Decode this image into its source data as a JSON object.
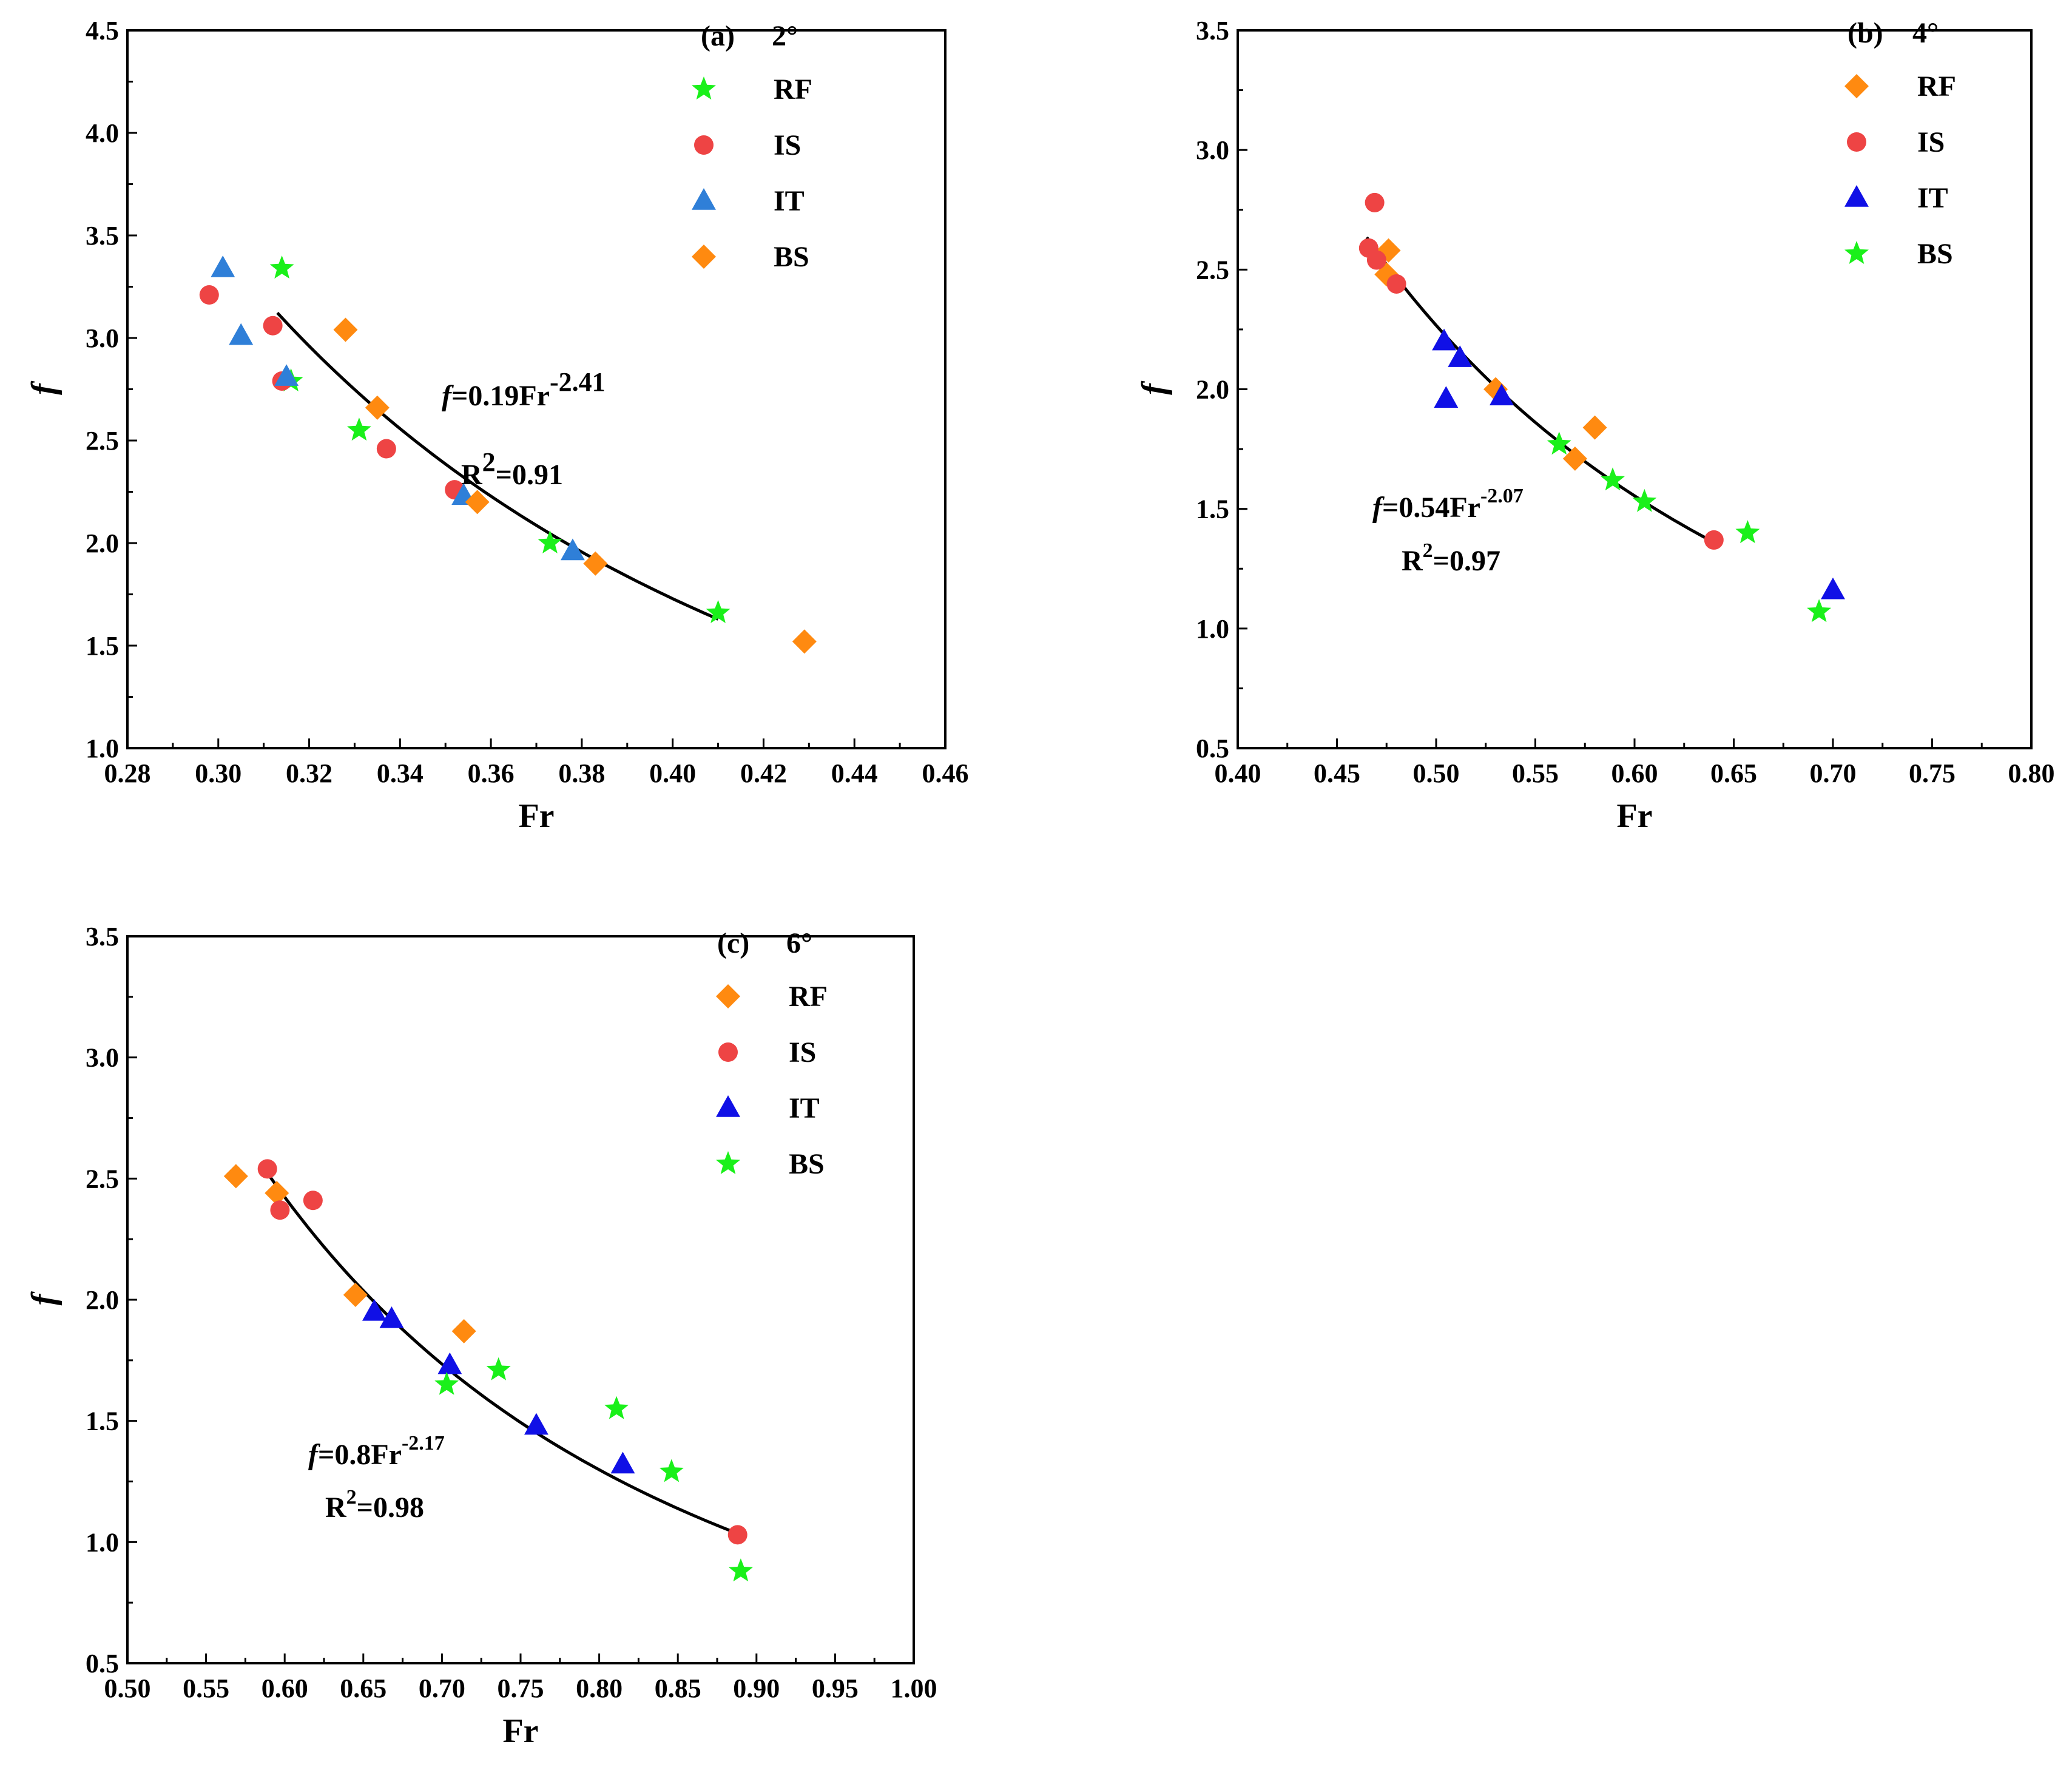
{
  "figure_title": "",
  "colors": {
    "RF_a": "#1AF01A",
    "IS": "#EE4444",
    "IT_a": "#2F7FD8",
    "IT": "#1010E6",
    "BS_a": "#FF8A10",
    "orange": "#FF8A10",
    "green": "#1AF01A",
    "axis": "#000000",
    "fit": "#000000"
  },
  "chart_data": [
    {
      "id": "a",
      "type": "scatter",
      "panel_label": "(a)",
      "angle": "2°",
      "xlabel": "Fr",
      "ylabel": "f",
      "xlim": [
        0.28,
        0.46
      ],
      "ylim": [
        1.0,
        4.5
      ],
      "xticks": [
        "0.28",
        "0.30",
        "0.32",
        "0.34",
        "0.36",
        "0.38",
        "0.40",
        "0.42",
        "0.44",
        "0.46"
      ],
      "yticks": [
        "1.0",
        "1.5",
        "2.0",
        "2.5",
        "3.0",
        "3.5",
        "4.0",
        "4.5"
      ],
      "fit": {
        "a": 0.19,
        "b": -2.41,
        "x_range": [
          0.313,
          0.41
        ]
      },
      "equation": {
        "prefix": "f",
        "body": "=0.19Fr",
        "exp": "-2.41"
      },
      "r2": {
        "prefix": "R",
        "exp": "2",
        "value": "=0.91"
      },
      "series": [
        {
          "name": "RF",
          "marker": "star",
          "color": "#1AF01A",
          "x": [
            0.314,
            0.316,
            0.331,
            0.373,
            0.41
          ],
          "y": [
            3.34,
            2.79,
            2.55,
            2.0,
            1.66
          ]
        },
        {
          "name": "IS",
          "marker": "circle",
          "color": "#EE4444",
          "x": [
            0.298,
            0.312,
            0.314,
            0.337,
            0.352
          ],
          "y": [
            3.21,
            3.06,
            2.79,
            2.46,
            2.26
          ]
        },
        {
          "name": "IT",
          "marker": "triangle",
          "color": "#2F7FD8",
          "x": [
            0.301,
            0.305,
            0.315,
            0.354,
            0.378
          ],
          "y": [
            3.34,
            3.01,
            2.81,
            2.23,
            1.96
          ]
        },
        {
          "name": "BS",
          "marker": "diamond",
          "color": "#FF8A10",
          "x": [
            0.328,
            0.335,
            0.357,
            0.383,
            0.429
          ],
          "y": [
            3.04,
            2.66,
            2.2,
            1.9,
            1.52
          ]
        }
      ]
    },
    {
      "id": "b",
      "type": "scatter",
      "panel_label": "(b)",
      "angle": "4°",
      "xlabel": "Fr",
      "ylabel": "f",
      "xlim": [
        0.4,
        0.8
      ],
      "ylim": [
        0.5,
        3.5
      ],
      "xticks": [
        "0.40",
        "0.45",
        "0.50",
        "0.55",
        "0.60",
        "0.65",
        "0.70",
        "0.75",
        "0.80"
      ],
      "yticks": [
        "0.5",
        "1.0",
        "1.5",
        "2.0",
        "2.5",
        "3.0",
        "3.5"
      ],
      "fit": {
        "a": 0.54,
        "b": -2.07,
        "x_range": [
          0.465,
          0.64
        ]
      },
      "equation": {
        "prefix": "f",
        "body": "=0.54Fr",
        "exp": "-2.07"
      },
      "r2": {
        "prefix": "R",
        "exp": "2",
        "value": "=0.97"
      },
      "series": [
        {
          "name": "RF",
          "marker": "diamond",
          "color": "#FF8A10",
          "x": [
            0.476,
            0.475,
            0.53,
            0.57,
            0.58
          ],
          "y": [
            2.58,
            2.48,
            2.0,
            1.71,
            1.84
          ]
        },
        {
          "name": "IS",
          "marker": "circle",
          "color": "#EE4444",
          "x": [
            0.469,
            0.466,
            0.47,
            0.48,
            0.64
          ],
          "y": [
            2.78,
            2.59,
            2.54,
            2.44,
            1.37
          ]
        },
        {
          "name": "IT",
          "marker": "triangle",
          "color": "#1010E6",
          "x": [
            0.504,
            0.512,
            0.505,
            0.533,
            0.7
          ],
          "y": [
            2.2,
            2.13,
            1.96,
            1.97,
            1.16
          ]
        },
        {
          "name": "BS",
          "marker": "star",
          "color": "#1AF01A",
          "x": [
            0.562,
            0.589,
            0.605,
            0.657,
            0.693
          ],
          "y": [
            1.77,
            1.62,
            1.53,
            1.4,
            1.07
          ]
        }
      ]
    },
    {
      "id": "c",
      "type": "scatter",
      "panel_label": "(c)",
      "angle": "6°",
      "xlabel": "Fr",
      "ylabel": "f",
      "xlim": [
        0.5,
        1.0
      ],
      "ylim": [
        0.5,
        3.5
      ],
      "xticks": [
        "0.50",
        "0.55",
        "0.60",
        "0.65",
        "0.70",
        "0.75",
        "0.80",
        "0.85",
        "0.90",
        "0.95",
        "1.00"
      ],
      "yticks": [
        "0.5",
        "1.0",
        "1.5",
        "2.0",
        "2.5",
        "3.0",
        "3.5"
      ],
      "fit": {
        "a": 0.8,
        "b": -2.17,
        "x_range": [
          0.59,
          0.888
        ]
      },
      "equation": {
        "prefix": "f",
        "body": "=0.8Fr",
        "exp": "-2.17"
      },
      "r2": {
        "prefix": "R",
        "exp": "2",
        "value": "=0.98"
      },
      "series": [
        {
          "name": "RF",
          "marker": "diamond",
          "color": "#FF8A10",
          "x": [
            0.569,
            0.595,
            0.645,
            0.714
          ],
          "y": [
            2.51,
            2.44,
            2.02,
            1.87
          ]
        },
        {
          "name": "IS",
          "marker": "circle",
          "color": "#EE4444",
          "x": [
            0.589,
            0.597,
            0.618,
            0.888
          ],
          "y": [
            2.54,
            2.37,
            2.41,
            1.03
          ]
        },
        {
          "name": "IT",
          "marker": "triangle",
          "color": "#1010E6",
          "x": [
            0.657,
            0.668,
            0.705,
            0.76,
            0.815
          ],
          "y": [
            1.95,
            1.92,
            1.73,
            1.48,
            1.32
          ]
        },
        {
          "name": "BS",
          "marker": "star",
          "color": "#1AF01A",
          "x": [
            0.703,
            0.736,
            0.811,
            0.846,
            0.89
          ],
          "y": [
            1.65,
            1.71,
            1.55,
            1.29,
            0.88
          ]
        }
      ]
    }
  ]
}
